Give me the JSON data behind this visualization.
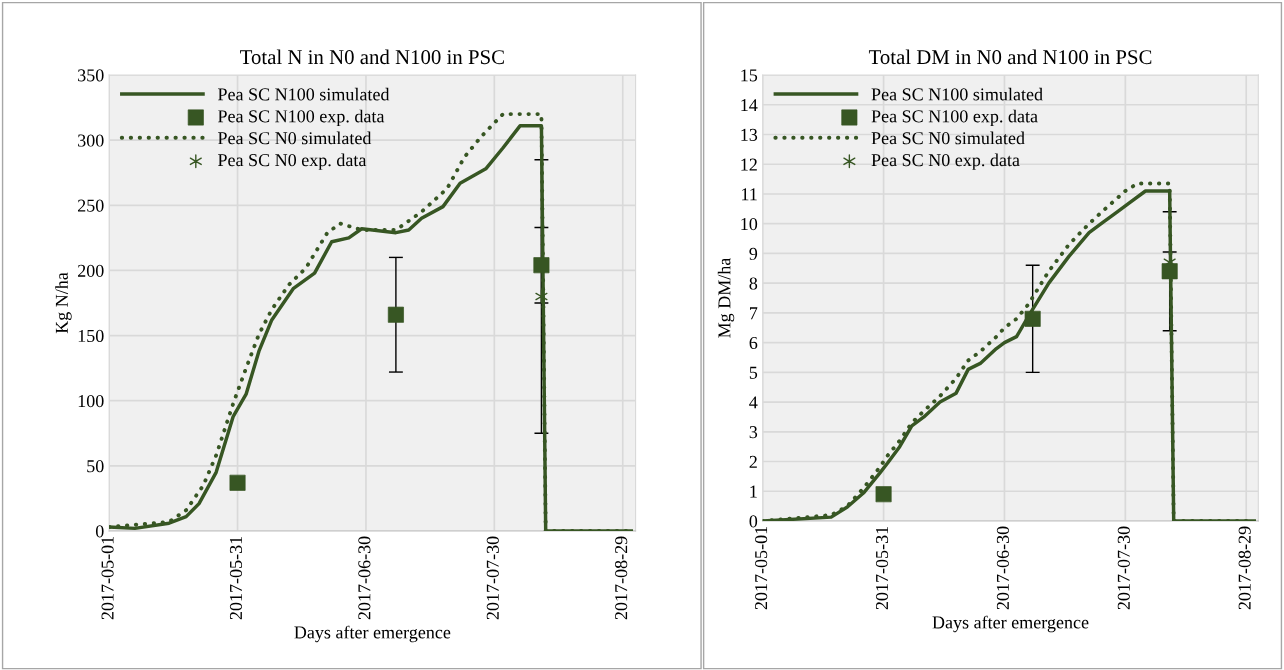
{
  "chart_data": [
    {
      "type": "line",
      "title": "Total N in N0 and N100 in PSC",
      "xlabel": "Days after emergence",
      "ylabel": "Kg N/ha",
      "xlim": [
        "2017-05-01",
        "2017-09-01"
      ],
      "xticks": [
        "2017-05-01",
        "2017-05-31",
        "2017-06-30",
        "2017-07-30",
        "2017-08-29"
      ],
      "ylim": [
        0,
        350
      ],
      "yticks": [
        0,
        50,
        100,
        150,
        200,
        250,
        300,
        350
      ],
      "grid": true,
      "legend": "top left",
      "series": [
        {
          "name": "Pea SC N100 simulated",
          "line_style": "solid",
          "marker": "none",
          "color": "#375623",
          "x": [
            "2017-05-01",
            "2017-05-07",
            "2017-05-15",
            "2017-05-19",
            "2017-05-22",
            "2017-05-26",
            "2017-05-30",
            "2017-06-02",
            "2017-06-05",
            "2017-06-08",
            "2017-06-13",
            "2017-06-18",
            "2017-06-22",
            "2017-06-26",
            "2017-06-29",
            "2017-07-07",
            "2017-07-10",
            "2017-07-13",
            "2017-07-18",
            "2017-07-22",
            "2017-07-28",
            "2017-08-01",
            "2017-08-05",
            "2017-08-10",
            "2017-08-11",
            "2017-08-31"
          ],
          "values": [
            3,
            2,
            6,
            11,
            21,
            45,
            88,
            105,
            138,
            162,
            186,
            198,
            222,
            225,
            232,
            229,
            231,
            240,
            249,
            267,
            278,
            294,
            311,
            311,
            0,
            0
          ]
        },
        {
          "name": "Pea SC N100 exp. data",
          "type": "scatter",
          "marker": "square",
          "color": "#375623",
          "x": [
            "2017-05-31",
            "2017-07-07",
            "2017-08-10"
          ],
          "values": [
            37,
            166,
            204
          ],
          "errors": [
            null,
            [
              122,
              210
            ],
            [
              175,
              233
            ]
          ]
        },
        {
          "name": "Pea SC N0 simulated",
          "line_style": "dotted",
          "marker": "none",
          "color": "#375623",
          "x": [
            "2017-05-01",
            "2017-05-15",
            "2017-05-19",
            "2017-05-23",
            "2017-05-26",
            "2017-05-30",
            "2017-06-02",
            "2017-06-05",
            "2017-06-08",
            "2017-06-12",
            "2017-06-16",
            "2017-06-21",
            "2017-06-24",
            "2017-06-29",
            "2017-07-07",
            "2017-07-13",
            "2017-07-19",
            "2017-07-23",
            "2017-07-27",
            "2017-08-01",
            "2017-08-10",
            "2017-08-11",
            "2017-08-31"
          ],
          "values": [
            3,
            7,
            16,
            35,
            58,
            98,
            125,
            151,
            170,
            189,
            202,
            229,
            236,
            231,
            231,
            245,
            263,
            287,
            303,
            320,
            320,
            0,
            0
          ]
        },
        {
          "name": "Pea SC N0 exp. data",
          "type": "scatter",
          "marker": "cross",
          "color": "#375623",
          "x": [
            "2017-08-10"
          ],
          "values": [
            180
          ],
          "errors": [
            105
          ]
        }
      ]
    },
    {
      "type": "line",
      "title": "Total DM in N0 and N100 in PSC",
      "xlabel": "Days after emergence",
      "ylabel": "Mg DM/ha",
      "xlim": [
        "2017-05-01",
        "2017-09-01"
      ],
      "xticks": [
        "2017-05-01",
        "2017-05-31",
        "2017-06-30",
        "2017-07-30",
        "2017-08-29"
      ],
      "ylim": [
        0,
        15
      ],
      "yticks": [
        0,
        1,
        2,
        3,
        4,
        5,
        6,
        7,
        8,
        9,
        10,
        11,
        12,
        13,
        14,
        15
      ],
      "grid": true,
      "legend": "top left",
      "series": [
        {
          "name": "Pea SC N100 simulated",
          "line_style": "solid",
          "marker": "none",
          "color": "#375623",
          "x": [
            "2017-05-01",
            "2017-05-18",
            "2017-05-22",
            "2017-05-26",
            "2017-05-30",
            "2017-06-01",
            "2017-06-04",
            "2017-06-07",
            "2017-06-10",
            "2017-06-14",
            "2017-06-18",
            "2017-06-21",
            "2017-06-24",
            "2017-06-28",
            "2017-06-30",
            "2017-07-03",
            "2017-07-06",
            "2017-07-11",
            "2017-07-16",
            "2017-07-21",
            "2017-07-24",
            "2017-07-28",
            "2017-07-31",
            "2017-08-04",
            "2017-08-10",
            "2017-08-11",
            "2017-08-31"
          ],
          "values": [
            0,
            0.13,
            0.47,
            0.94,
            1.6,
            1.95,
            2.5,
            3.2,
            3.5,
            4.0,
            4.3,
            5.1,
            5.3,
            5.8,
            6.0,
            6.2,
            6.9,
            8.0,
            8.9,
            9.7,
            10.0,
            10.4,
            10.7,
            11.1,
            11.1,
            0,
            0
          ]
        },
        {
          "name": "Pea SC N100 exp. data",
          "type": "scatter",
          "marker": "square",
          "color": "#375623",
          "x": [
            "2017-05-31",
            "2017-07-07",
            "2017-08-10"
          ],
          "values": [
            0.9,
            6.8,
            8.4
          ],
          "errors": [
            null,
            [
              5.0,
              8.6
            ],
            2.0
          ]
        },
        {
          "name": "Pea SC N0 simulated",
          "line_style": "dotted",
          "marker": "none",
          "color": "#375623",
          "x": [
            "2017-05-01",
            "2017-05-18",
            "2017-05-22",
            "2017-05-26",
            "2017-05-30",
            "2017-06-01",
            "2017-06-04",
            "2017-06-07",
            "2017-06-10",
            "2017-06-14",
            "2017-06-18",
            "2017-06-21",
            "2017-06-24",
            "2017-06-28",
            "2017-06-30",
            "2017-07-03",
            "2017-07-06",
            "2017-07-11",
            "2017-07-16",
            "2017-07-21",
            "2017-07-25",
            "2017-07-30",
            "2017-08-02",
            "2017-08-10",
            "2017-08-11",
            "2017-08-31"
          ],
          "values": [
            0,
            0.2,
            0.5,
            1.1,
            1.8,
            2.2,
            2.7,
            3.3,
            3.7,
            4.2,
            4.8,
            5.4,
            5.7,
            6.2,
            6.5,
            6.8,
            7.3,
            8.4,
            9.3,
            10.0,
            10.5,
            11.1,
            11.35,
            11.35,
            0,
            0
          ]
        },
        {
          "name": "Pea SC N0 exp. data",
          "type": "scatter",
          "marker": "cross",
          "color": "#375623",
          "x": [
            "2017-08-10"
          ],
          "values": [
            8.7
          ],
          "errors": [
            0.35
          ]
        }
      ]
    }
  ]
}
